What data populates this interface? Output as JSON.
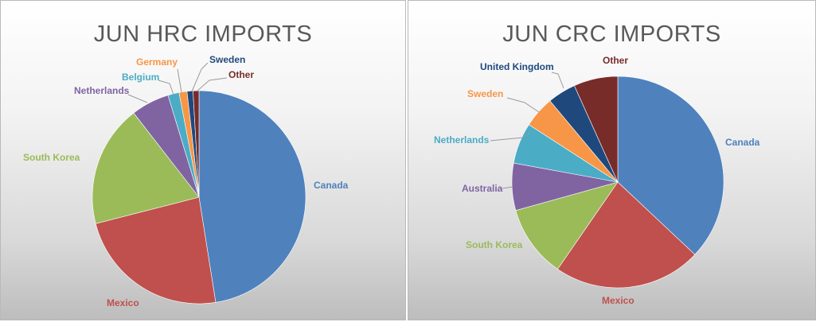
{
  "chart_data": [
    {
      "type": "pie",
      "title": "JUN HRC IMPORTS",
      "slices": [
        {
          "label": "Canada",
          "value": 47.5,
          "color": "#4f81bd"
        },
        {
          "label": "Mexico",
          "value": 23.5,
          "color": "#c0504d"
        },
        {
          "label": "South Korea",
          "value": 18.5,
          "color": "#9bbb59"
        },
        {
          "label": "Netherlands",
          "value": 5.8,
          "color": "#8064a2"
        },
        {
          "label": "Belgium",
          "value": 1.7,
          "color": "#4bacc6"
        },
        {
          "label": "Germany",
          "value": 1.2,
          "color": "#f79646"
        },
        {
          "label": "Sweden",
          "value": 0.9,
          "color": "#1f497d"
        },
        {
          "label": "Other",
          "value": 0.9,
          "color": "#772c2a"
        }
      ]
    },
    {
      "type": "pie",
      "title": "JUN CRC IMPORTS",
      "slices": [
        {
          "label": "Canada",
          "value": 38.5,
          "color": "#4f81bd"
        },
        {
          "label": "Mexico",
          "value": 23.5,
          "color": "#c0504d"
        },
        {
          "label": "South Korea",
          "value": 11.5,
          "color": "#9bbb59"
        },
        {
          "label": "Australia",
          "value": 7.5,
          "color": "#8064a2"
        },
        {
          "label": "Netherlands",
          "value": 6.5,
          "color": "#4bacc6"
        },
        {
          "label": "Sweden",
          "value": 5.0,
          "color": "#f79646"
        },
        {
          "label": "United Kingdom",
          "value": 4.5,
          "color": "#1f497d"
        },
        {
          "label": "Other",
          "value": 7.0,
          "color": "#772c2a"
        }
      ]
    }
  ]
}
